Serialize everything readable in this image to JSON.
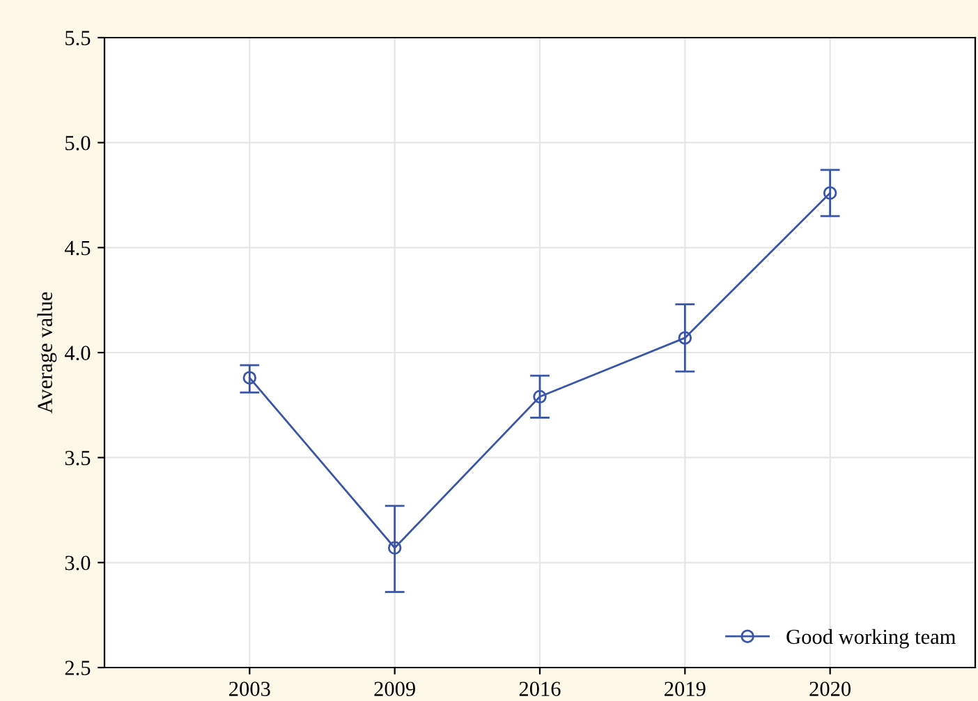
{
  "chart_data": {
    "type": "line",
    "ylabel": "Average value",
    "categories": [
      "2003",
      "2009",
      "2016",
      "2019",
      "2020"
    ],
    "series": [
      {
        "name": "Good working team",
        "color": "#3a55a8",
        "values": [
          3.88,
          3.07,
          3.79,
          4.07,
          4.76
        ],
        "errors": [
          [
            3.81,
            3.94
          ],
          [
            2.86,
            3.27
          ],
          [
            3.69,
            3.89
          ],
          [
            3.91,
            4.23
          ],
          [
            4.65,
            4.87
          ]
        ]
      }
    ],
    "ylim": [
      2.5,
      5.5
    ],
    "yticks": [
      {
        "value": 2.5,
        "label": "2.5"
      },
      {
        "value": 3.0,
        "label": "3.0"
      },
      {
        "value": 3.5,
        "label": "3.5"
      },
      {
        "value": 4.0,
        "label": "4.0"
      },
      {
        "value": 4.5,
        "label": "4.5"
      },
      {
        "value": 5.0,
        "label": "5.0"
      },
      {
        "value": 5.5,
        "label": "5.5"
      }
    ],
    "grid": true,
    "legend": "bottom right",
    "marker": "circle",
    "line_style": "solid"
  }
}
